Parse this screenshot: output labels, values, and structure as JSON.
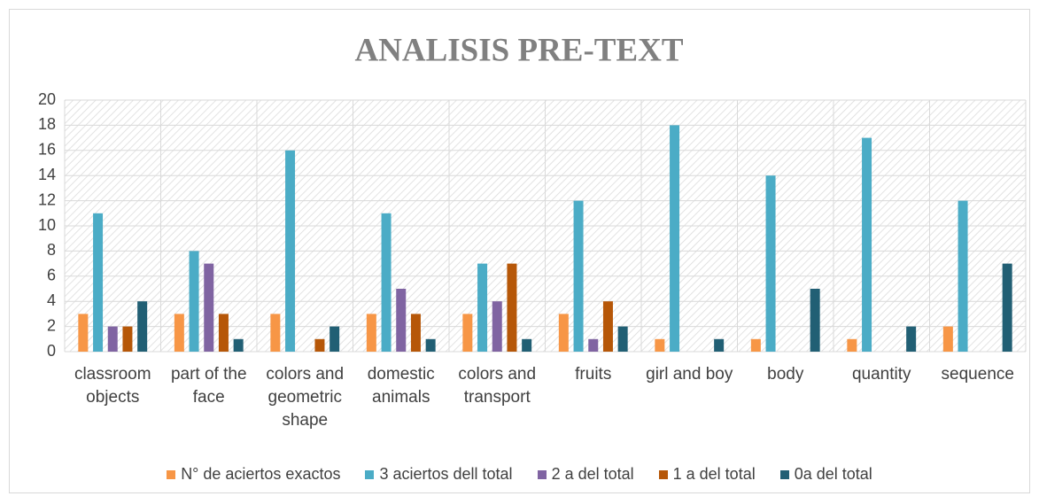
{
  "chart_data": {
    "type": "bar",
    "title": "ANALISIS PRE-TEXT",
    "categories": [
      "classroom objects",
      "part of the face",
      "colors and geometric shape",
      "domestic animals",
      "colors and transport",
      "fruits",
      "girl and boy",
      "body",
      "quantity",
      "sequence"
    ],
    "series": [
      {
        "name": "N° de aciertos exactos",
        "color": "#f79646",
        "values": [
          3,
          3,
          3,
          3,
          3,
          3,
          1,
          1,
          1,
          2
        ]
      },
      {
        "name": "3 aciertos dell total",
        "color": "#4bacc6",
        "values": [
          11,
          8,
          16,
          11,
          7,
          12,
          18,
          14,
          17,
          12
        ]
      },
      {
        "name": "2 a del total",
        "color": "#8064a2",
        "values": [
          2,
          7,
          0,
          5,
          4,
          1,
          0,
          0,
          0,
          0
        ]
      },
      {
        "name": "1 a del total",
        "color": "#b65708",
        "values": [
          2,
          3,
          1,
          3,
          7,
          4,
          0,
          0,
          0,
          0
        ]
      },
      {
        "name": "0a del total",
        "color": "#215f74",
        "values": [
          4,
          1,
          2,
          1,
          1,
          2,
          1,
          5,
          2,
          7
        ]
      }
    ],
    "ylim": [
      0,
      20
    ],
    "yticks": [
      0,
      2,
      4,
      6,
      8,
      10,
      12,
      14,
      16,
      18,
      20
    ],
    "grid": true,
    "legend": "bottom"
  }
}
